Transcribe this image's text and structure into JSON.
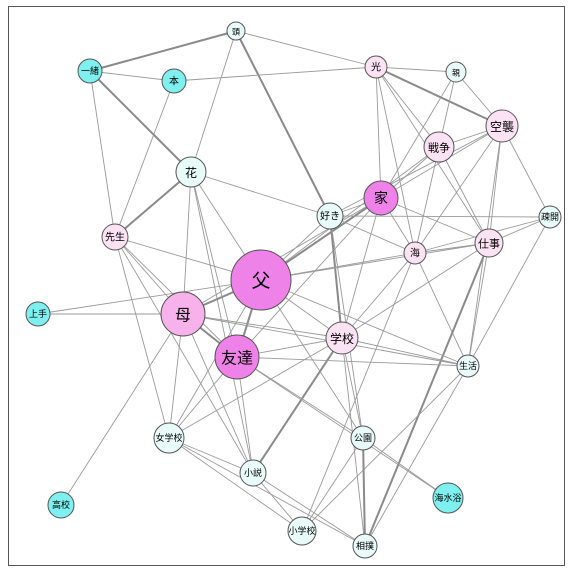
{
  "colors": {
    "edge": "#9a9a9a",
    "edge_strong": "#8a8a8a",
    "node_stroke": "#555555",
    "cyan": "#7ff0f0",
    "pale_cyan": "#e8fbf8",
    "pale_pink": "#fbe3f4",
    "pink": "#f7b2ec",
    "magenta": "#ee82e8"
  },
  "nodes": [
    {
      "id": "頭",
      "label": "頭",
      "color": "pale_cyan"
    },
    {
      "id": "一緒",
      "label": "一緒",
      "color": "cyan"
    },
    {
      "id": "本",
      "label": "本",
      "color": "cyan"
    },
    {
      "id": "光",
      "label": "光",
      "color": "pale_pink"
    },
    {
      "id": "親",
      "label": "親",
      "color": "pale_cyan"
    },
    {
      "id": "空襲",
      "label": "空襲",
      "color": "pale_pink"
    },
    {
      "id": "戦争",
      "label": "戦争",
      "color": "pale_pink"
    },
    {
      "id": "花",
      "label": "花",
      "color": "pale_cyan"
    },
    {
      "id": "家",
      "label": "家",
      "color": "magenta"
    },
    {
      "id": "好き",
      "label": "好き",
      "color": "pale_cyan"
    },
    {
      "id": "疎開",
      "label": "疎開",
      "color": "pale_cyan"
    },
    {
      "id": "先生",
      "label": "先生",
      "color": "pale_pink"
    },
    {
      "id": "海",
      "label": "海",
      "color": "pale_pink"
    },
    {
      "id": "仕事",
      "label": "仕事",
      "color": "pale_pink"
    },
    {
      "id": "父",
      "label": "父",
      "color": "magenta"
    },
    {
      "id": "上手",
      "label": "上手",
      "color": "cyan"
    },
    {
      "id": "母",
      "label": "母",
      "color": "pink"
    },
    {
      "id": "学校",
      "label": "学校",
      "color": "pale_pink"
    },
    {
      "id": "友達",
      "label": "友達",
      "color": "magenta"
    },
    {
      "id": "生活",
      "label": "生活",
      "color": "pale_cyan"
    },
    {
      "id": "女学校",
      "label": "女学校",
      "color": "pale_cyan"
    },
    {
      "id": "公園",
      "label": "公園",
      "color": "pale_cyan"
    },
    {
      "id": "小説",
      "label": "小説",
      "color": "pale_cyan"
    },
    {
      "id": "高校",
      "label": "高校",
      "color": "cyan"
    },
    {
      "id": "海水浴",
      "label": "海水浴",
      "color": "cyan"
    },
    {
      "id": "小学校",
      "label": "小学校",
      "color": "pale_cyan"
    },
    {
      "id": "相撲",
      "label": "相撲",
      "color": "pale_cyan"
    }
  ],
  "edges": [
    [
      "頭",
      "一緒",
      2
    ],
    [
      "頭",
      "光",
      1
    ],
    [
      "頭",
      "好き",
      2
    ],
    [
      "頭",
      "花",
      1
    ],
    [
      "一緒",
      "本",
      1
    ],
    [
      "一緒",
      "花",
      2
    ],
    [
      "一緒",
      "先生",
      1
    ],
    [
      "本",
      "光",
      1
    ],
    [
      "本",
      "先生",
      1
    ],
    [
      "光",
      "親",
      1
    ],
    [
      "光",
      "空襲",
      2
    ],
    [
      "光",
      "戦争",
      1
    ],
    [
      "光",
      "家",
      1
    ],
    [
      "光",
      "海",
      1
    ],
    [
      "光",
      "仕事",
      1
    ],
    [
      "親",
      "空襲",
      1
    ],
    [
      "親",
      "戦争",
      1
    ],
    [
      "親",
      "家",
      1
    ],
    [
      "空襲",
      "戦争",
      1
    ],
    [
      "空襲",
      "家",
      1
    ],
    [
      "空襲",
      "疎開",
      1
    ],
    [
      "空襲",
      "海",
      1
    ],
    [
      "空襲",
      "仕事",
      1
    ],
    [
      "空襲",
      "好き",
      1
    ],
    [
      "空襲",
      "生活",
      1
    ],
    [
      "戦争",
      "家",
      1
    ],
    [
      "戦争",
      "海",
      1
    ],
    [
      "戦争",
      "仕事",
      1
    ],
    [
      "戦争",
      "父",
      1
    ],
    [
      "家",
      "好き",
      1
    ],
    [
      "家",
      "海",
      1
    ],
    [
      "家",
      "仕事",
      1
    ],
    [
      "家",
      "父",
      2
    ],
    [
      "家",
      "母",
      1
    ],
    [
      "家",
      "学校",
      1
    ],
    [
      "家",
      "友達",
      1
    ],
    [
      "好き",
      "疎開",
      1
    ],
    [
      "好き",
      "父",
      1
    ],
    [
      "好き",
      "学校",
      2
    ],
    [
      "好き",
      "公園",
      1
    ],
    [
      "好き",
      "海",
      1
    ],
    [
      "好き",
      "花",
      1
    ],
    [
      "疎開",
      "仕事",
      1
    ],
    [
      "疎開",
      "海",
      1
    ],
    [
      "疎開",
      "生活",
      1
    ],
    [
      "花",
      "先生",
      2
    ],
    [
      "花",
      "母",
      1
    ],
    [
      "花",
      "友達",
      1
    ],
    [
      "花",
      "小説",
      1
    ],
    [
      "花",
      "父",
      1
    ],
    [
      "先生",
      "父",
      1
    ],
    [
      "先生",
      "母",
      1
    ],
    [
      "先生",
      "友達",
      1
    ],
    [
      "先生",
      "女学校",
      1
    ],
    [
      "先生",
      "小説",
      1
    ],
    [
      "海",
      "仕事",
      1
    ],
    [
      "海",
      "父",
      1
    ],
    [
      "海",
      "学校",
      1
    ],
    [
      "海",
      "生活",
      1
    ],
    [
      "海",
      "小学校",
      1
    ],
    [
      "仕事",
      "父",
      1
    ],
    [
      "仕事",
      "学校",
      1
    ],
    [
      "仕事",
      "相撲",
      2
    ],
    [
      "仕事",
      "生活",
      1
    ],
    [
      "父",
      "母",
      2
    ],
    [
      "父",
      "友達",
      2
    ],
    [
      "父",
      "学校",
      1
    ],
    [
      "父",
      "公園",
      1
    ],
    [
      "父",
      "生活",
      1
    ],
    [
      "父",
      "女学校",
      1
    ],
    [
      "上手",
      "母",
      1
    ],
    [
      "上手",
      "父",
      1
    ],
    [
      "母",
      "友達",
      2
    ],
    [
      "母",
      "学校",
      1
    ],
    [
      "母",
      "女学校",
      1
    ],
    [
      "母",
      "小説",
      1
    ],
    [
      "母",
      "高校",
      1
    ],
    [
      "母",
      "生活",
      1
    ],
    [
      "学校",
      "友達",
      1
    ],
    [
      "学校",
      "生活",
      1
    ],
    [
      "学校",
      "小説",
      2
    ],
    [
      "学校",
      "公園",
      1
    ],
    [
      "学校",
      "相撲",
      1
    ],
    [
      "学校",
      "女学校",
      1
    ],
    [
      "友達",
      "生活",
      1
    ],
    [
      "友達",
      "女学校",
      1
    ],
    [
      "友達",
      "小説",
      1
    ],
    [
      "友達",
      "海水浴",
      1
    ],
    [
      "友達",
      "公園",
      1
    ],
    [
      "生活",
      "相撲",
      1
    ],
    [
      "生活",
      "小学校",
      1
    ],
    [
      "女学校",
      "小説",
      1
    ],
    [
      "女学校",
      "相撲",
      1
    ],
    [
      "女学校",
      "小学校",
      1
    ],
    [
      "公園",
      "相撲",
      2
    ],
    [
      "公園",
      "海水浴",
      1
    ],
    [
      "公園",
      "小学校",
      1
    ],
    [
      "小説",
      "小学校",
      1
    ],
    [
      "小説",
      "相撲",
      1
    ]
  ]
}
